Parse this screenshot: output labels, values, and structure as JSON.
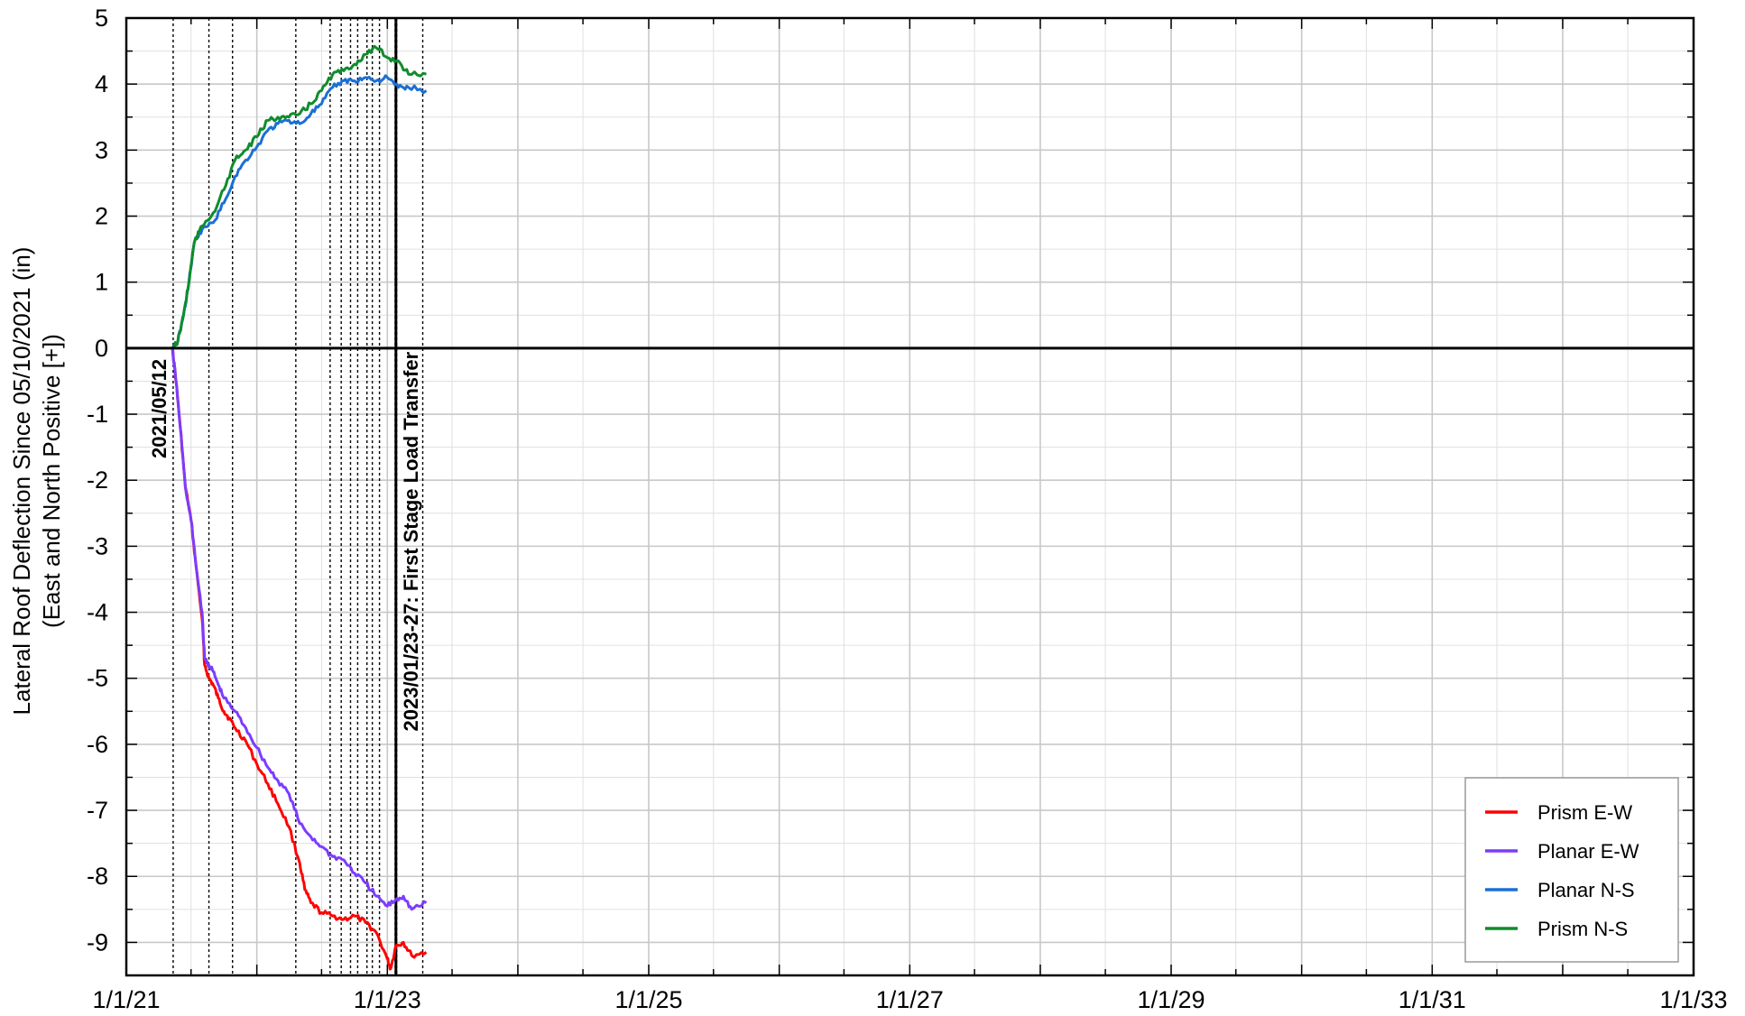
{
  "chart_data": {
    "type": "line",
    "title": "",
    "ylabel_line1": "Lateral Roof Deflection Since 05/10/2021 (in)",
    "ylabel_line2": "(East and North Positive [+])",
    "xlabel": "",
    "x_axis_type": "date",
    "xlim": [
      "2021-01-01",
      "2033-01-01"
    ],
    "ylim": [
      -9.5,
      5
    ],
    "x_tick_labels": [
      "1/1/21",
      "1/1/23",
      "1/1/25",
      "1/1/27",
      "1/1/29",
      "1/1/31",
      "1/1/33"
    ],
    "y_tick_labels": [
      "5",
      "4",
      "3",
      "2",
      "1",
      "0",
      "-1",
      "-2",
      "-3",
      "-4",
      "-5",
      "-6",
      "-7",
      "-8",
      "-9"
    ],
    "y_ticks": [
      5,
      4,
      3,
      2,
      1,
      0,
      -1,
      -2,
      -3,
      -4,
      -5,
      -6,
      -7,
      -8,
      -9
    ],
    "grid": true,
    "minor_grid": true,
    "legend_placement": "bottom-right",
    "annotations": [
      {
        "text": "2021/05/12",
        "date": "2021-05-12"
      },
      {
        "text": "2023/01/23-27: First Stage Load Transfer",
        "date": "2023-01-25"
      }
    ],
    "event_lines_dates": [
      "2021-05-12",
      "2021-08-20",
      "2021-10-25",
      "2022-04-20",
      "2022-07-25",
      "2022-08-25",
      "2022-09-20",
      "2022-10-10",
      "2022-11-05",
      "2022-11-20",
      "2022-12-10",
      "2023-01-23",
      "2023-01-27",
      "2023-04-10"
    ],
    "series": [
      {
        "name": "Prism E-W",
        "color": "#ff0000",
        "points": [
          [
            "2021-05-10",
            0
          ],
          [
            "2021-05-20",
            -0.5
          ],
          [
            "2021-06-01",
            -1.2
          ],
          [
            "2021-06-15",
            -2.1
          ],
          [
            "2021-07-01",
            -2.6
          ],
          [
            "2021-07-15",
            -3.3
          ],
          [
            "2021-08-01",
            -4.1
          ],
          [
            "2021-08-08",
            -4.8
          ],
          [
            "2021-08-20",
            -5.0
          ],
          [
            "2021-09-01",
            -5.1
          ],
          [
            "2021-09-15",
            -5.3
          ],
          [
            "2021-10-01",
            -5.5
          ],
          [
            "2021-10-15",
            -5.6
          ],
          [
            "2021-11-01",
            -5.75
          ],
          [
            "2021-12-01",
            -5.95
          ],
          [
            "2022-01-01",
            -6.3
          ],
          [
            "2022-02-01",
            -6.6
          ],
          [
            "2022-03-01",
            -6.9
          ],
          [
            "2022-04-01",
            -7.25
          ],
          [
            "2022-05-01",
            -7.8
          ],
          [
            "2022-05-15",
            -8.2
          ],
          [
            "2022-06-01",
            -8.4
          ],
          [
            "2022-07-01",
            -8.55
          ],
          [
            "2022-08-01",
            -8.6
          ],
          [
            "2022-09-01",
            -8.65
          ],
          [
            "2022-10-01",
            -8.6
          ],
          [
            "2022-11-01",
            -8.7
          ],
          [
            "2022-12-01",
            -8.85
          ],
          [
            "2023-01-01",
            -9.25
          ],
          [
            "2023-01-10",
            -9.4
          ],
          [
            "2023-01-25",
            -9.05
          ],
          [
            "2023-02-15",
            -9.0
          ],
          [
            "2023-03-10",
            -9.2
          ],
          [
            "2023-04-20",
            -9.15
          ]
        ]
      },
      {
        "name": "Planar E-W",
        "color": "#7b3cff",
        "points": [
          [
            "2021-05-10",
            0
          ],
          [
            "2021-05-20",
            -0.5
          ],
          [
            "2021-06-01",
            -1.2
          ],
          [
            "2021-06-15",
            -2.1
          ],
          [
            "2021-07-01",
            -2.6
          ],
          [
            "2021-07-15",
            -3.3
          ],
          [
            "2021-08-01",
            -4.0
          ],
          [
            "2021-08-08",
            -4.7
          ],
          [
            "2021-08-20",
            -4.8
          ],
          [
            "2021-09-01",
            -4.9
          ],
          [
            "2021-09-15",
            -5.1
          ],
          [
            "2021-10-01",
            -5.3
          ],
          [
            "2021-11-01",
            -5.5
          ],
          [
            "2021-12-01",
            -5.75
          ],
          [
            "2022-01-01",
            -6.05
          ],
          [
            "2022-02-01",
            -6.35
          ],
          [
            "2022-03-01",
            -6.55
          ],
          [
            "2022-04-01",
            -6.75
          ],
          [
            "2022-05-01",
            -7.2
          ],
          [
            "2022-06-01",
            -7.4
          ],
          [
            "2022-07-01",
            -7.55
          ],
          [
            "2022-08-01",
            -7.7
          ],
          [
            "2022-09-01",
            -7.75
          ],
          [
            "2022-10-01",
            -7.95
          ],
          [
            "2022-11-01",
            -8.1
          ],
          [
            "2022-12-01",
            -8.3
          ],
          [
            "2023-01-01",
            -8.45
          ],
          [
            "2023-01-25",
            -8.35
          ],
          [
            "2023-02-15",
            -8.3
          ],
          [
            "2023-03-10",
            -8.5
          ],
          [
            "2023-04-20",
            -8.4
          ]
        ]
      },
      {
        "name": "Planar N-S",
        "color": "#1a6fd6",
        "points": [
          [
            "2021-05-10",
            0
          ],
          [
            "2021-05-25",
            0.1
          ],
          [
            "2021-06-10",
            0.5
          ],
          [
            "2021-06-25",
            1.0
          ],
          [
            "2021-07-10",
            1.6
          ],
          [
            "2021-08-01",
            1.8
          ],
          [
            "2021-09-01",
            1.9
          ],
          [
            "2021-10-01",
            2.2
          ],
          [
            "2021-11-01",
            2.6
          ],
          [
            "2021-12-01",
            2.85
          ],
          [
            "2022-01-01",
            3.05
          ],
          [
            "2022-02-01",
            3.3
          ],
          [
            "2022-03-01",
            3.4
          ],
          [
            "2022-04-01",
            3.45
          ],
          [
            "2022-05-01",
            3.4
          ],
          [
            "2022-06-01",
            3.55
          ],
          [
            "2022-07-01",
            3.7
          ],
          [
            "2022-08-01",
            3.95
          ],
          [
            "2022-09-01",
            4.05
          ],
          [
            "2022-10-01",
            4.05
          ],
          [
            "2022-11-01",
            4.1
          ],
          [
            "2022-12-01",
            4.05
          ],
          [
            "2023-01-01",
            4.1
          ],
          [
            "2023-02-01",
            3.95
          ],
          [
            "2023-03-01",
            3.95
          ],
          [
            "2023-04-20",
            3.9
          ]
        ]
      },
      {
        "name": "Prism N-S",
        "color": "#0f8c2c",
        "points": [
          [
            "2021-05-10",
            0
          ],
          [
            "2021-05-25",
            0.1
          ],
          [
            "2021-06-10",
            0.5
          ],
          [
            "2021-06-25",
            1.0
          ],
          [
            "2021-07-10",
            1.6
          ],
          [
            "2021-08-01",
            1.85
          ],
          [
            "2021-09-01",
            2.05
          ],
          [
            "2021-10-01",
            2.4
          ],
          [
            "2021-11-01",
            2.85
          ],
          [
            "2021-12-01",
            3.0
          ],
          [
            "2022-01-01",
            3.2
          ],
          [
            "2022-02-01",
            3.45
          ],
          [
            "2022-03-01",
            3.5
          ],
          [
            "2022-04-01",
            3.5
          ],
          [
            "2022-05-01",
            3.55
          ],
          [
            "2022-06-01",
            3.7
          ],
          [
            "2022-07-01",
            3.9
          ],
          [
            "2022-08-01",
            4.15
          ],
          [
            "2022-09-01",
            4.2
          ],
          [
            "2022-10-01",
            4.3
          ],
          [
            "2022-11-01",
            4.45
          ],
          [
            "2022-12-01",
            4.55
          ],
          [
            "2023-01-01",
            4.4
          ],
          [
            "2023-02-01",
            4.35
          ],
          [
            "2023-03-01",
            4.15
          ],
          [
            "2023-04-20",
            4.15
          ]
        ]
      }
    ]
  }
}
